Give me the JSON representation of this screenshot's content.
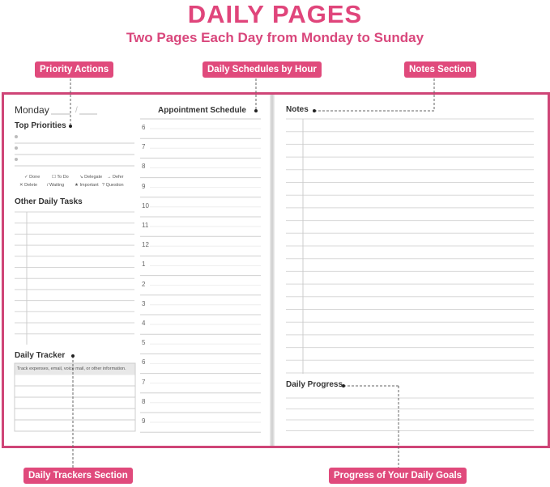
{
  "title": "DAILY PAGES",
  "subtitle": "Two Pages Each Day from Monday to Sunday",
  "callouts": {
    "priority": "Priority Actions",
    "schedule": "Daily Schedules by Hour",
    "notes": "Notes Section",
    "trackers": "Daily Trackers Section",
    "progress": "Progress of Your Daily Goals"
  },
  "left": {
    "day": "Monday",
    "date_sep": "/",
    "top_priorities": "Top Priorities",
    "legend": [
      "✓ Done",
      "☐ To Do",
      "↘ Delegate",
      "→ Defer",
      "✕ Delete",
      "/ Waiting",
      "★ Important",
      "? Question"
    ],
    "other_tasks": "Other Daily Tasks",
    "tracker": "Daily Tracker",
    "tracker_hint": "Track expenses, email, voice mail, or other information."
  },
  "schedule": {
    "title": "Appointment Schedule",
    "hours": [
      "6",
      "7",
      "8",
      "9",
      "10",
      "11",
      "12",
      "1",
      "2",
      "3",
      "4",
      "5",
      "6",
      "7",
      "8",
      "9"
    ]
  },
  "right": {
    "notes": "Notes",
    "progress": "Daily Progress"
  },
  "colors": {
    "accent": "#e04a7c",
    "border": "#cf4577"
  }
}
